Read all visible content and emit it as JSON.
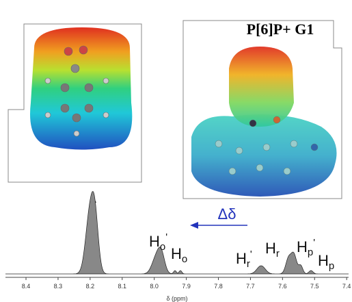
{
  "figure": {
    "title": "P[6]P+ G1",
    "star": "*",
    "shift_label": "Δδ",
    "peaks": [
      {
        "base": "H",
        "sub": "o",
        "prime": "'"
      },
      {
        "base": "H",
        "sub": "o"
      },
      {
        "base": "H",
        "sub": "r",
        "prime": "'"
      },
      {
        "base": "H",
        "sub": "r"
      },
      {
        "base": "H",
        "sub": "p",
        "prime": "'"
      },
      {
        "base": "H",
        "sub": "p"
      }
    ],
    "axis": {
      "label": "δ (ppm)",
      "xlim": [
        8.464,
        7.394
      ],
      "xticks": [
        8.4,
        8.3,
        8.2,
        8.1,
        {
          "value": 8,
          "label": "8.0"
        },
        7.9,
        7.8,
        7.7,
        7.6,
        7.5,
        7.4
      ]
    }
  }
}
